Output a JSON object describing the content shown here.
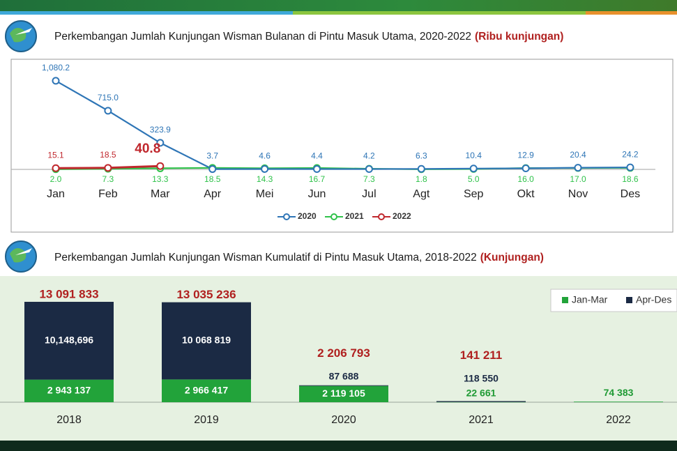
{
  "chart_data": [
    {
      "type": "line",
      "title": "Perkembangan Jumlah Kunjungan Wisman Bulanan di Pintu Masuk Utama, 2020-2022",
      "unit": "(Ribu kunjungan)",
      "categories": [
        "Jan",
        "Feb",
        "Mar",
        "Apr",
        "Mei",
        "Jun",
        "Jul",
        "Agt",
        "Sep",
        "Okt",
        "Nov",
        "Des"
      ],
      "series": [
        {
          "name": "2020",
          "color": "#2e75b6",
          "values": [
            1080.2,
            715.0,
            323.9,
            3.7,
            4.6,
            4.4,
            4.2,
            6.3,
            10.4,
            12.9,
            20.4,
            24.2
          ],
          "value_labels": [
            "1,080.2",
            "715.0",
            "323.9",
            "3.7",
            "4.6",
            "4.4",
            "4.2",
            "6.3",
            "10.4",
            "12.9",
            "20.4",
            "24.2"
          ]
        },
        {
          "name": "2021",
          "color": "#2fc24a",
          "values": [
            2.0,
            7.3,
            13.3,
            18.5,
            14.3,
            16.7,
            7.3,
            1.8,
            5.0,
            16.0,
            17.0,
            18.6
          ],
          "value_labels": [
            "2.0",
            "7.3",
            "13.3",
            "18.5",
            "14.3",
            "16.7",
            "7.3",
            "1.8",
            "5.0",
            "16.0",
            "17.0",
            "18.6"
          ]
        },
        {
          "name": "2022",
          "color": "#c0272d",
          "values": [
            15.1,
            18.5,
            40.8,
            null,
            null,
            null,
            null,
            null,
            null,
            null,
            null,
            null
          ],
          "value_labels": [
            "15.1",
            "18.5",
            "40.8",
            null,
            null,
            null,
            null,
            null,
            null,
            null,
            null,
            null
          ]
        }
      ],
      "ylim": [
        0,
        1300
      ]
    },
    {
      "type": "bar",
      "title": "Perkembangan Jumlah Kunjungan Wisman Kumulatif di Pintu Masuk Utama, 2018-2022",
      "unit": "(Kunjungan)",
      "categories": [
        "2018",
        "2019",
        "2020",
        "2021",
        "2022"
      ],
      "series": [
        {
          "name": "Jan-Mar",
          "color": "#22a33a",
          "values": [
            2943137,
            2966417,
            2119105,
            22661,
            74383
          ],
          "value_labels": [
            "2 943 137",
            "2 966 417",
            "2 119 105",
            "22 661",
            "74 383"
          ]
        },
        {
          "name": "Apr-Des",
          "color": "#1b2a44",
          "values": [
            10148696,
            10068819,
            87688,
            118550,
            null
          ],
          "value_labels": [
            "10,148,696",
            "10 068 819",
            "87 688",
            "118 550",
            null
          ]
        }
      ],
      "totals": [
        13091833,
        13035236,
        2206793,
        141211,
        null
      ],
      "total_labels": [
        "13 091 833",
        "13 035 236",
        "2 206 793",
        "141 211",
        null
      ],
      "ylim": [
        0,
        15000000
      ]
    }
  ]
}
